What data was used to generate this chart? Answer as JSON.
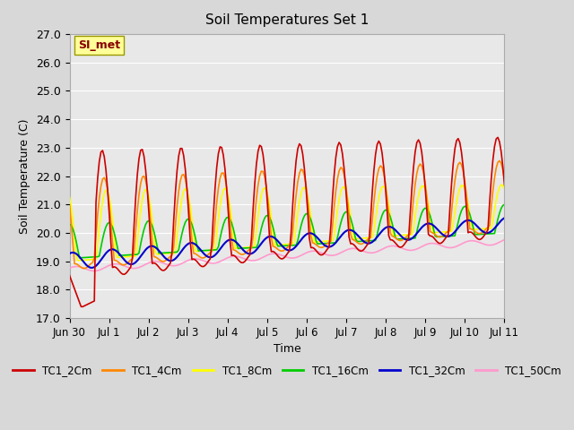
{
  "title": "Soil Temperatures Set 1",
  "xlabel": "Time",
  "ylabel": "Soil Temperature (C)",
  "ylim": [
    17.0,
    27.0
  ],
  "yticks": [
    17.0,
    18.0,
    19.0,
    20.0,
    21.0,
    22.0,
    23.0,
    24.0,
    25.0,
    26.0,
    27.0
  ],
  "bg_color": "#e8e8e8",
  "plot_bg_color": "#e8e8e8",
  "annotation_text": "SI_met",
  "annotation_bg": "#ffff99",
  "annotation_border": "#999900",
  "annotation_text_color": "#880000",
  "series_colors": {
    "TC1_2Cm": "#cc0000",
    "TC1_4Cm": "#ff8800",
    "TC1_8Cm": "#ffff00",
    "TC1_16Cm": "#00cc00",
    "TC1_32Cm": "#0000cc",
    "TC1_50Cm": "#ff99cc"
  },
  "legend_colors": [
    "#cc0000",
    "#ff8800",
    "#ffff00",
    "#00cc00",
    "#0000cc",
    "#ff99cc"
  ],
  "legend_labels": [
    "TC1_2Cm",
    "TC1_4Cm",
    "TC1_8Cm",
    "TC1_16Cm",
    "TC1_32Cm",
    "TC1_50Cm"
  ],
  "n_days": 11,
  "pts_per_day": 24,
  "start_day_label": "Jun 30",
  "xtick_labels": [
    "Jun 30",
    "Jul 1",
    "Jul 2",
    "Jul 3",
    "Jul 4",
    "Jul 5",
    "Jul 6",
    "Jul 7",
    "Jul 8",
    "Jul 9",
    "Jul 10",
    "Jul 11"
  ]
}
